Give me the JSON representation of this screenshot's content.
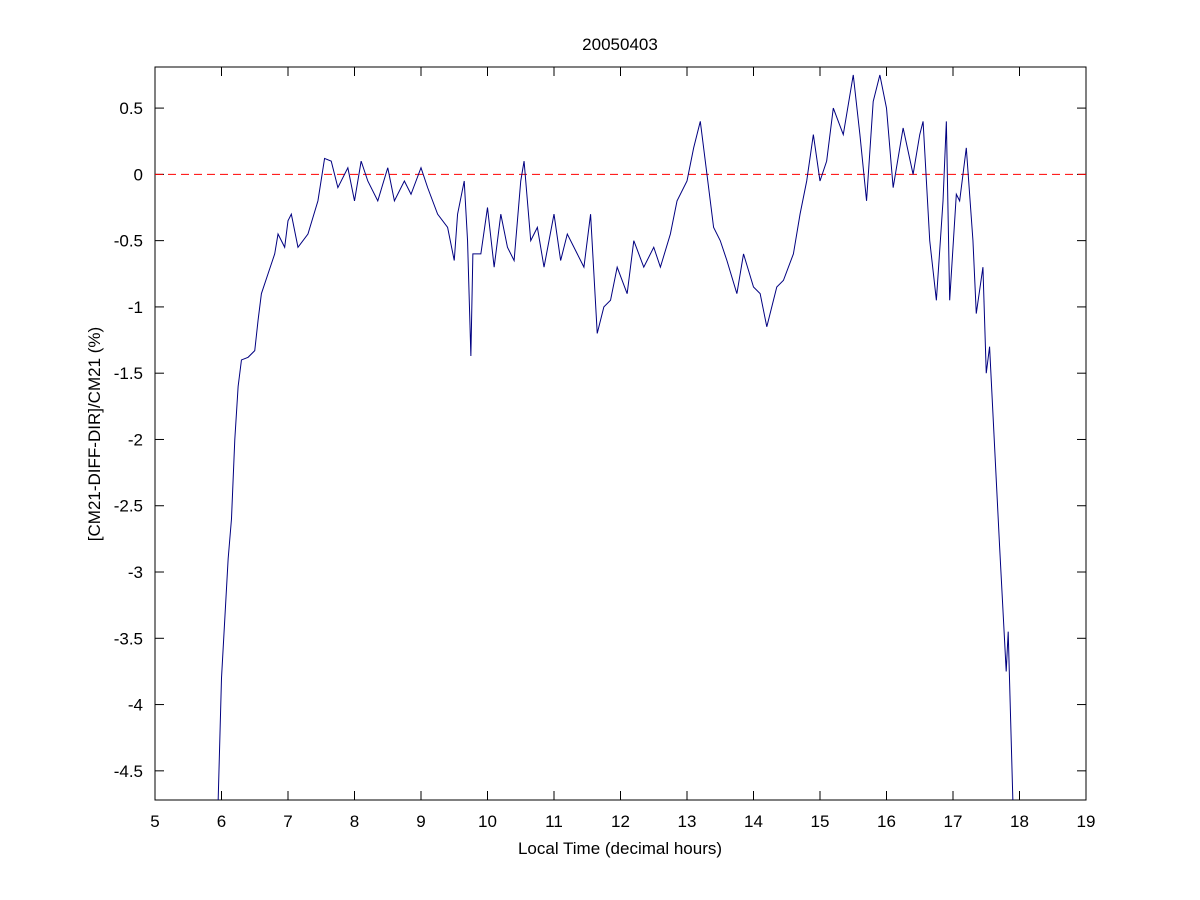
{
  "chart_data": {
    "type": "line",
    "title": "20050403",
    "x_label": "Local Time (decimal hours)",
    "y_label": "[CM21-DIFF-DIR]/CM21 (%)",
    "xlim": [
      5,
      19
    ],
    "ylim": [
      -4.72,
      0.81
    ],
    "xticks": [
      5,
      6,
      7,
      8,
      9,
      10,
      11,
      12,
      13,
      14,
      15,
      16,
      17,
      18,
      19
    ],
    "yticks": [
      0.5,
      0,
      -0.5,
      -1,
      -1.5,
      -2,
      -2.5,
      -3,
      -3.5,
      -4,
      -4.5
    ],
    "reference_line": {
      "value": 0,
      "color": "#ff0000"
    },
    "series": [
      {
        "color": "#000080",
        "x": [
          5.95,
          6.0,
          6.1,
          6.15,
          6.2,
          6.25,
          6.3,
          6.4,
          6.5,
          6.55,
          6.6,
          6.7,
          6.8,
          6.85,
          6.95,
          7.0,
          7.05,
          7.15,
          7.3,
          7.45,
          7.55,
          7.65,
          7.75,
          7.9,
          8.0,
          8.1,
          8.2,
          8.35,
          8.5,
          8.6,
          8.75,
          8.85,
          9.0,
          9.1,
          9.25,
          9.4,
          9.5,
          9.55,
          9.65,
          9.7,
          9.75,
          9.78,
          9.9,
          10.0,
          10.1,
          10.2,
          10.3,
          10.4,
          10.5,
          10.55,
          10.65,
          10.75,
          10.85,
          11.0,
          11.1,
          11.2,
          11.35,
          11.45,
          11.55,
          11.65,
          11.75,
          11.85,
          11.95,
          12.1,
          12.2,
          12.35,
          12.5,
          12.6,
          12.75,
          12.85,
          13.0,
          13.1,
          13.2,
          13.3,
          13.4,
          13.5,
          13.6,
          13.75,
          13.85,
          14.0,
          14.1,
          14.2,
          14.35,
          14.45,
          14.6,
          14.7,
          14.8,
          14.9,
          15.0,
          15.1,
          15.2,
          15.35,
          15.5,
          15.6,
          15.7,
          15.8,
          15.9,
          16.0,
          16.1,
          16.25,
          16.4,
          16.5,
          16.55,
          16.65,
          16.75,
          16.85,
          16.9,
          16.95,
          17.05,
          17.1,
          17.2,
          17.3,
          17.35,
          17.45,
          17.5,
          17.55,
          17.6,
          17.7,
          17.8,
          17.83,
          17.9
        ],
        "values": [
          -4.72,
          -3.8,
          -2.9,
          -2.6,
          -2.0,
          -1.6,
          -1.4,
          -1.38,
          -1.33,
          -1.1,
          -0.9,
          -0.75,
          -0.6,
          -0.45,
          -0.55,
          -0.35,
          -0.3,
          -0.55,
          -0.45,
          -0.2,
          0.12,
          0.1,
          -0.1,
          0.05,
          -0.2,
          0.1,
          -0.05,
          -0.2,
          0.05,
          -0.2,
          -0.05,
          -0.15,
          0.05,
          -0.1,
          -0.3,
          -0.4,
          -0.65,
          -0.3,
          -0.05,
          -0.5,
          -1.37,
          -0.6,
          -0.6,
          -0.25,
          -0.7,
          -0.3,
          -0.55,
          -0.65,
          -0.05,
          0.1,
          -0.5,
          -0.4,
          -0.7,
          -0.3,
          -0.65,
          -0.45,
          -0.6,
          -0.7,
          -0.3,
          -1.2,
          -1.0,
          -0.95,
          -0.7,
          -0.9,
          -0.5,
          -0.7,
          -0.55,
          -0.7,
          -0.45,
          -0.2,
          -0.05,
          0.2,
          0.4,
          0.0,
          -0.4,
          -0.5,
          -0.65,
          -0.9,
          -0.6,
          -0.85,
          -0.9,
          -1.15,
          -0.85,
          -0.8,
          -0.6,
          -0.3,
          -0.05,
          0.3,
          -0.05,
          0.1,
          0.5,
          0.3,
          0.75,
          0.3,
          -0.2,
          0.55,
          0.75,
          0.5,
          -0.1,
          0.35,
          0.0,
          0.3,
          0.4,
          -0.5,
          -0.95,
          -0.2,
          0.4,
          -0.95,
          -0.15,
          -0.2,
          0.2,
          -0.5,
          -1.05,
          -0.7,
          -1.5,
          -1.3,
          -1.8,
          -2.8,
          -3.75,
          -3.45,
          -4.72
        ]
      }
    ]
  }
}
